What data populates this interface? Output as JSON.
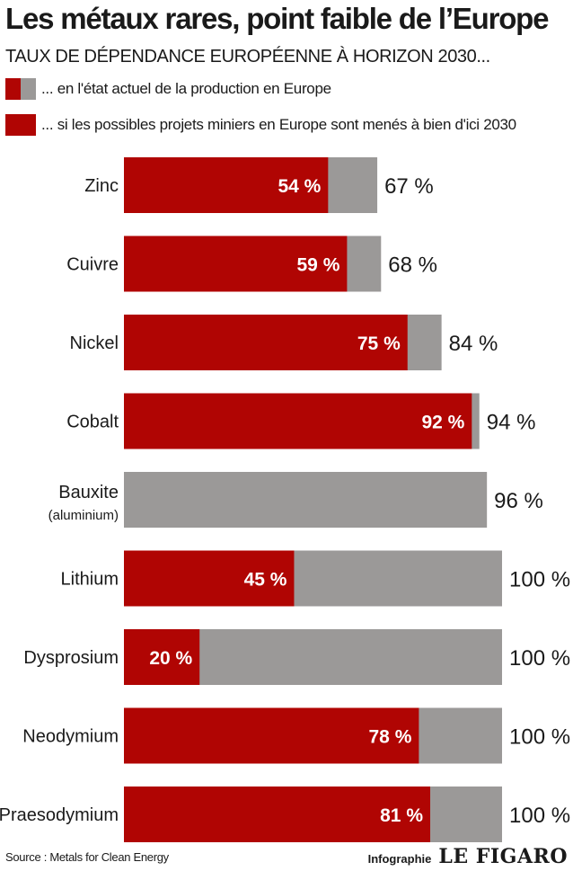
{
  "header": {
    "title": "Les métaux rares, point faible de l’Europe",
    "subtitle": "TAUX DE DÉPENDANCE EUROPÉENNE À HORIZON 2030..."
  },
  "legend": {
    "current": "... en l'état actuel de la production en Europe",
    "projects": "... si les possibles projets miniers en Europe sont menés à bien d'ici 2030"
  },
  "colors": {
    "projects": "#b00503",
    "current": "#9b9998"
  },
  "chart_data": {
    "type": "bar",
    "orientation": "horizontal",
    "stacked": "overlay",
    "unit": "%",
    "xlim": [
      0,
      100
    ],
    "grid": false,
    "categories": [
      {
        "label": "Zinc",
        "sublabel": ""
      },
      {
        "label": "Cuivre",
        "sublabel": ""
      },
      {
        "label": "Nickel",
        "sublabel": ""
      },
      {
        "label": "Cobalt",
        "sublabel": ""
      },
      {
        "label": "Bauxite",
        "sublabel": "(aluminium)"
      },
      {
        "label": "Lithium",
        "sublabel": ""
      },
      {
        "label": "Dysprosium",
        "sublabel": ""
      },
      {
        "label": "Neodymium",
        "sublabel": ""
      },
      {
        "label": "Praesodymium",
        "sublabel": ""
      }
    ],
    "series": [
      {
        "name": "... en l'état actuel de la production en Europe",
        "values": [
          67,
          68,
          84,
          94,
          96,
          100,
          100,
          100,
          100
        ]
      },
      {
        "name": "... si les possibles projets miniers en Europe sont menés à bien d'ici 2030",
        "values": [
          54,
          59,
          75,
          92,
          null,
          45,
          20,
          78,
          81
        ]
      }
    ],
    "value_labels_current": [
      "67 %",
      "68 %",
      "84 %",
      "94 %",
      "96 %",
      "100 %",
      "100 %",
      "100 %",
      "100 %"
    ],
    "value_labels_projects": [
      "54 %",
      "59 %",
      "75 %",
      "92 %",
      "",
      "45 %",
      "20 %",
      "78 %",
      "81 %"
    ]
  },
  "footer": {
    "source": "Source : Metals for Clean Energy",
    "credit_label": "Infographie",
    "brand": "LE FIGARO"
  }
}
